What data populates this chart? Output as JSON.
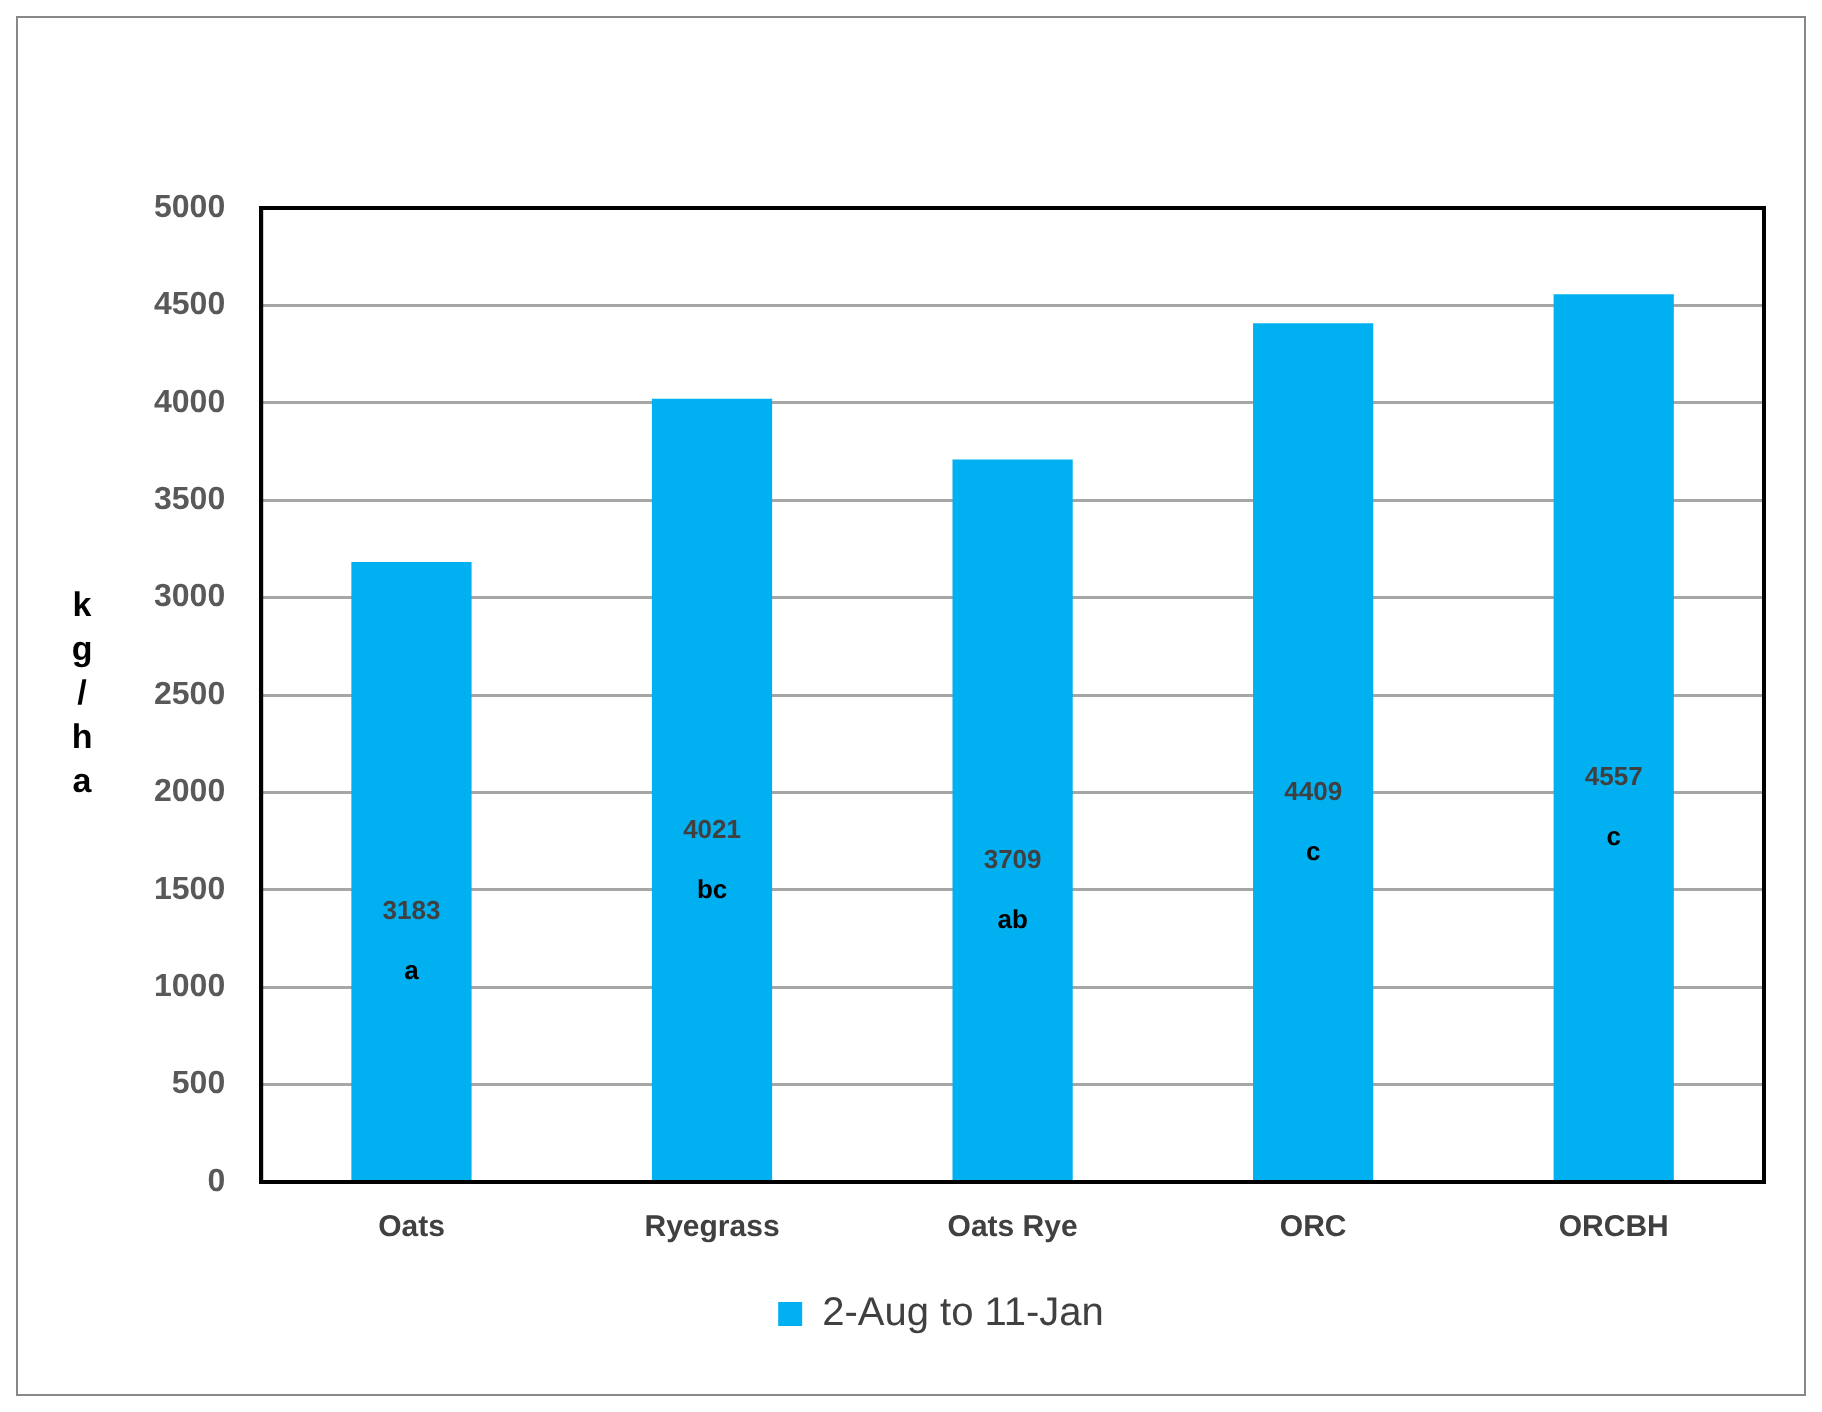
{
  "chart_data": {
    "type": "bar",
    "ylabel": "kg/ha",
    "categories": [
      "Oats",
      "Ryegrass",
      "Oats Rye",
      "ORC",
      "ORCBH"
    ],
    "series": [
      {
        "name": "2-Aug to 11-Jan",
        "color": "#00b0f0",
        "values": [
          3183,
          4021,
          3709,
          4409,
          4557
        ]
      }
    ],
    "ylim": [
      0,
      5000
    ],
    "yticks": [
      0,
      500,
      1000,
      1500,
      2000,
      2500,
      3000,
      3500,
      4000,
      4500,
      5000
    ],
    "grid": "y",
    "legend": "bottom",
    "data_labels": true,
    "annotations": [
      "a",
      "bc",
      "ab",
      "c",
      "c"
    ]
  }
}
